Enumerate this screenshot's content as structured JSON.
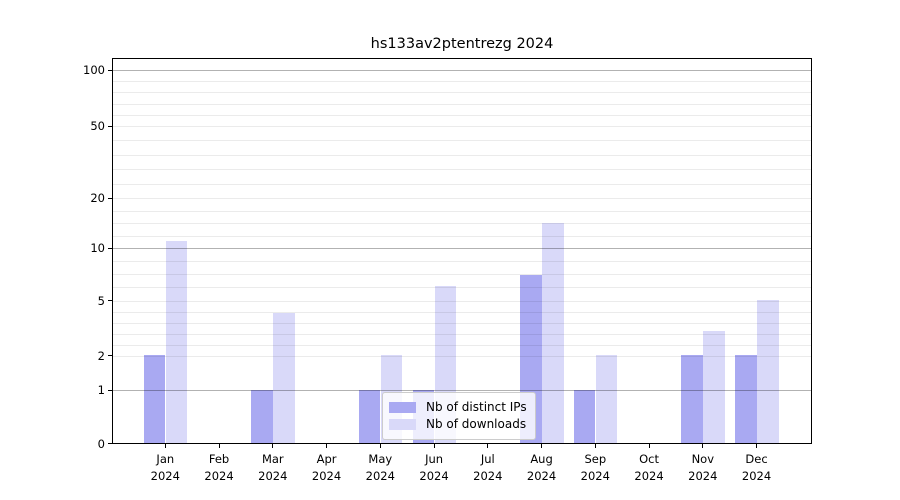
{
  "chart_data": {
    "type": "bar",
    "title": "hs133av2ptentrezg 2024",
    "categories": [
      "Jan",
      "Feb",
      "Mar",
      "Apr",
      "May",
      "Jun",
      "Jul",
      "Aug",
      "Sep",
      "Oct",
      "Nov",
      "Dec"
    ],
    "year": "2024",
    "series": [
      {
        "name": "Nb of distinct IPs",
        "color": "#a9a9f2",
        "values": [
          2,
          0,
          1,
          0,
          1,
          1,
          0,
          7,
          1,
          0,
          2,
          2
        ]
      },
      {
        "name": "Nb of downloads",
        "color": "#d9d9f9",
        "values": [
          11,
          0,
          4,
          0,
          2,
          6,
          0,
          14,
          2,
          0,
          3,
          5
        ]
      }
    ],
    "yticks": [
      0,
      1,
      2,
      5,
      10,
      20,
      50,
      100
    ],
    "ylim": [
      0,
      100
    ],
    "yscale": "log-like",
    "xlabel": "",
    "ylabel": "",
    "grid": true,
    "legend_position": "lower center"
  }
}
